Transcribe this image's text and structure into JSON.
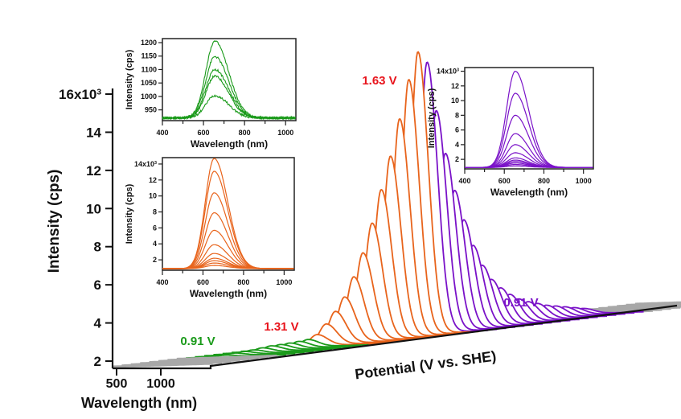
{
  "chart_data": {
    "type": "line",
    "description": "3D waterfall of photoluminescence spectra versus applied potential",
    "main": {
      "ylabel": "Intensity (cps)",
      "xlabel": "Wavelength (nm)",
      "zlabel": "Potential (V vs. SHE)",
      "y_ticks": [
        "2",
        "4",
        "6",
        "8",
        "10",
        "12",
        "14",
        "16x10³"
      ],
      "y_tick_values": [
        2000,
        4000,
        6000,
        8000,
        10000,
        12000,
        14000,
        16000
      ],
      "ylim": [
        1600,
        16500
      ],
      "x_ticks": [
        "500",
        "1000"
      ],
      "x_tick_values": [
        500,
        1000
      ],
      "annotations": [
        {
          "text": "0.91 V",
          "color": "#1a9a1a",
          "position": "start-of-scan"
        },
        {
          "text": "1.31 V",
          "color": "#e8141c",
          "position": "onset"
        },
        {
          "text": "1.63 V",
          "color": "#e8141c",
          "position": "maximum"
        },
        {
          "text": "0.91 V",
          "color": "#7a12c8",
          "position": "end-of-scan"
        }
      ],
      "series": [
        {
          "name": "pre-scan baseline",
          "color": "#a8a8a8",
          "count": 8,
          "peak_intensity": 920
        },
        {
          "name": "forward scan 0.91-1.31 V",
          "color": "#1a9a1a",
          "peak_intensities": [
            1000,
            1050,
            1075,
            1100,
            1150,
            1200,
            1210,
            1230,
            1260,
            1300
          ]
        },
        {
          "name": "forward scan 1.31-1.63 V",
          "color": "#e8641c",
          "peak_intensities": [
            1500,
            2000,
            2600,
            3300,
            4300,
            5500,
            7000,
            8700,
            10400,
            12300,
            14300,
            15700
          ]
        },
        {
          "name": "reverse scan 1.63-0.91 V",
          "color": "#7a12c8",
          "peak_intensities": [
            15100,
            12500,
            10200,
            8200,
            6600,
            5200,
            4100,
            3300,
            2800,
            2400,
            2100,
            1900,
            1750,
            1600,
            1500,
            1400,
            1300,
            1200
          ]
        },
        {
          "name": "post-scan baseline",
          "color": "#a8a8a8",
          "count": 10,
          "peak_intensity": 920
        }
      ]
    },
    "insets": [
      {
        "name": "forward 0.91-1.31 V",
        "color": "#1a9a1a",
        "xlabel": "Wavelength (nm)",
        "ylabel": "Intensity (cps)",
        "x_ticks": [
          "400",
          "600",
          "800",
          "1000"
        ],
        "xlim": [
          400,
          1050
        ],
        "y_ticks": [
          "950",
          "1000",
          "1050",
          "1100",
          "1150",
          "1200"
        ],
        "ylim": [
          910,
          1215
        ],
        "baseline": 920,
        "peak_wavelength": 655,
        "peak_values": [
          1003,
          1075,
          1100,
          1148,
          1205
        ],
        "noisy": true
      },
      {
        "name": "forward 1.31-1.63 V",
        "color": "#e8641c",
        "xlabel": "Wavelength (nm)",
        "ylabel": "Intensity (cps)",
        "x_ticks": [
          "400",
          "600",
          "800",
          "1000"
        ],
        "xlim": [
          400,
          1050
        ],
        "y_ticks": [
          "2",
          "4",
          "6",
          "8",
          "10",
          "12",
          "14x10³"
        ],
        "ylim": [
          700,
          14800
        ],
        "baseline": 900,
        "peak_wavelength": 655,
        "peak_values": [
          1300,
          1600,
          1900,
          2200,
          2800,
          3900,
          5700,
          7900,
          10400,
          13100,
          14700
        ],
        "noisy": false
      },
      {
        "name": "reverse 1.63-0.91 V",
        "color": "#7a12c8",
        "xlabel": "Wavelength (nm)",
        "ylabel": "Intensity (cps)",
        "x_ticks": [
          "400",
          "600",
          "800",
          "1000"
        ],
        "xlim": [
          400,
          1050
        ],
        "y_ticks": [
          "2",
          "4",
          "6",
          "8",
          "10",
          "12",
          "14x10³"
        ],
        "ylim": [
          700,
          14500
        ],
        "baseline": 900,
        "peak_wavelength": 655,
        "peak_values": [
          1100,
          1300,
          1500,
          1700,
          1900,
          2200,
          2900,
          4000,
          5500,
          8000,
          11000,
          14000
        ],
        "noisy": false
      }
    ]
  }
}
